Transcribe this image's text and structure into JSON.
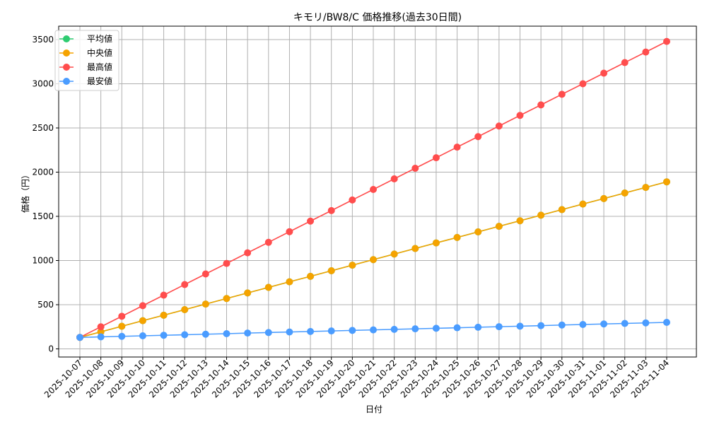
{
  "chart_data": {
    "type": "line",
    "title": "キモリ/BW8/C 価格推移(過去30日間)",
    "xlabel": "日付",
    "ylabel": "価格（円）",
    "ylim": [
      -92,
      3652
    ],
    "yticks": [
      0,
      500,
      1000,
      1500,
      2000,
      2500,
      3000,
      3500
    ],
    "grid": true,
    "legend_position": "top-left",
    "x": [
      "2025-10-07",
      "2025-10-08",
      "2025-10-09",
      "2025-10-10",
      "2025-10-11",
      "2025-10-12",
      "2025-10-13",
      "2025-10-14",
      "2025-10-15",
      "2025-10-16",
      "2025-10-17",
      "2025-10-18",
      "2025-10-19",
      "2025-10-20",
      "2025-10-21",
      "2025-10-22",
      "2025-10-23",
      "2025-10-24",
      "2025-10-25",
      "2025-10-26",
      "2025-10-27",
      "2025-10-28",
      "2025-10-29",
      "2025-10-30",
      "2025-10-31",
      "2025-11-01",
      "2025-11-02",
      "2025-11-03",
      "2025-11-04"
    ],
    "series": [
      {
        "name": "平均値",
        "color": "#2ecc71",
        "values": [
          130,
          193,
          256,
          319,
          381,
          444,
          507,
          570,
          633,
          696,
          759,
          821,
          884,
          947,
          1010,
          1073,
          1136,
          1199,
          1261,
          1324,
          1387,
          1450,
          1513,
          1576,
          1639,
          1701,
          1764,
          1827,
          1890
        ]
      },
      {
        "name": "中央値",
        "color": "#f5a300",
        "values": [
          130,
          193,
          256,
          319,
          381,
          444,
          507,
          570,
          633,
          696,
          759,
          821,
          884,
          947,
          1010,
          1073,
          1136,
          1199,
          1261,
          1324,
          1387,
          1450,
          1513,
          1576,
          1639,
          1701,
          1764,
          1827,
          1890
        ]
      },
      {
        "name": "最高値",
        "color": "#ff4d4d",
        "values": [
          130,
          250,
          369,
          489,
          608,
          728,
          848,
          967,
          1087,
          1206,
          1326,
          1446,
          1565,
          1685,
          1804,
          1924,
          2044,
          2163,
          2283,
          2402,
          2522,
          2642,
          2761,
          2881,
          3000,
          3120,
          3240,
          3359,
          3479
        ]
      },
      {
        "name": "最安値",
        "color": "#4a9cff",
        "values": [
          130,
          136,
          142,
          148,
          154,
          160,
          166,
          172,
          179,
          185,
          191,
          197,
          203,
          209,
          215,
          221,
          227,
          233,
          239,
          245,
          251,
          257,
          263,
          270,
          276,
          282,
          288,
          294,
          300
        ]
      }
    ]
  }
}
